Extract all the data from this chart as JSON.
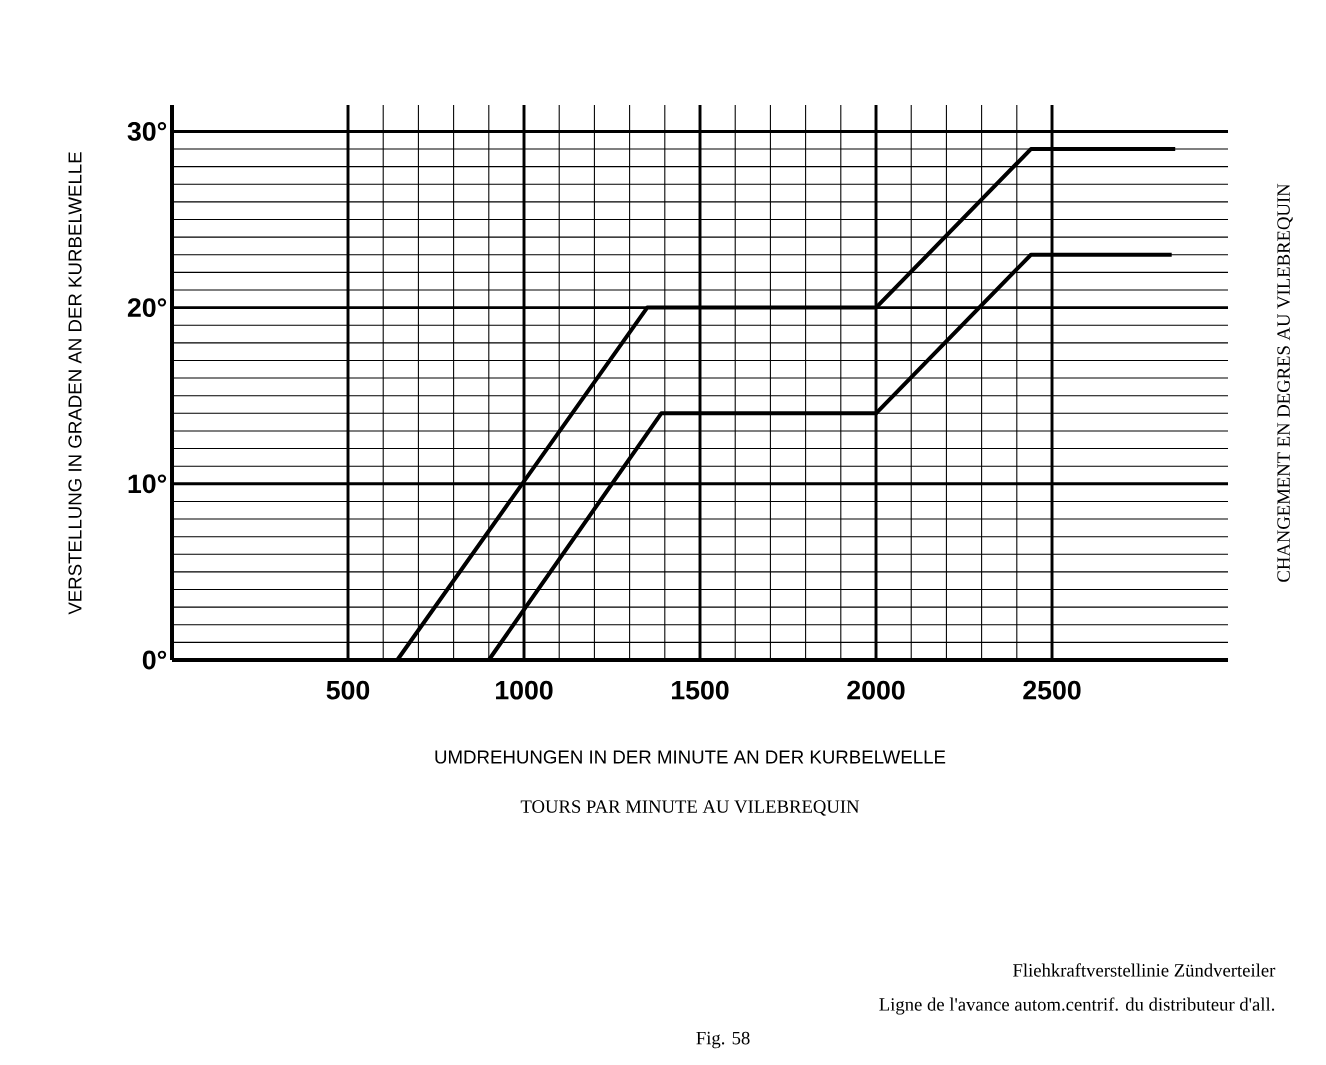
{
  "chart_data": {
    "type": "line",
    "xlabel": "UMDREHUNGEN IN DER MINUTE AN DER KURBELWELLE",
    "ylabel": "VERSTELLUNG IN GRADEN AN DER KURBELWELLE",
    "y2label": "CHANGEMENT EN DEGRES AU VILEBREQUIN",
    "annotations": [
      "TOURS PAR MINUTE AU VILEBREQUIN",
      "Fliehkraftverstellinie Zündverteiler",
      "Ligne de l'avance autom.centrif. du distributeur d'all.",
      "Fig. 58"
    ],
    "series": [
      {
        "color": "#000000",
        "x": [
          640,
          1350,
          2000,
          2440,
          2850
        ],
        "values": [
          0,
          20,
          20,
          29,
          29
        ]
      },
      {
        "color": "#000000",
        "x": [
          900,
          1390,
          2000,
          2440,
          2840
        ],
        "values": [
          0,
          14,
          14,
          23,
          23
        ]
      }
    ],
    "xlim": [
      0,
      3000
    ],
    "ylim": [
      0,
      31.5
    ],
    "xticks": [
      500,
      1000,
      1500,
      2000,
      2500
    ],
    "yticks": [
      {
        "value": 0,
        "label": "0°"
      },
      {
        "value": 10,
        "label": "10°"
      },
      {
        "value": 20,
        "label": "20°"
      },
      {
        "value": 30,
        "label": "30°"
      }
    ],
    "grid": true,
    "marker": "none",
    "line_style": "solid"
  }
}
